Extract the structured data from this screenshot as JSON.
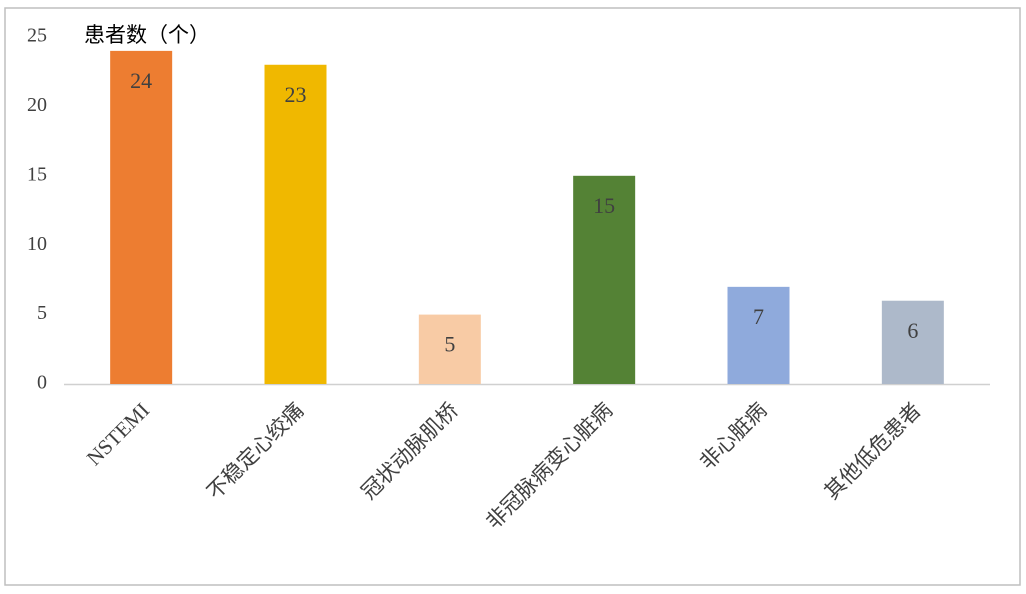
{
  "chart_data": {
    "type": "bar",
    "y_label": "患者数（个）",
    "categories": [
      "NSTEMI",
      "不稳定心绞痛",
      "冠状动脉肌桥",
      "非冠脉病变心脏病",
      "非心脏病",
      "其他低危患者"
    ],
    "values": [
      24,
      23,
      5,
      15,
      7,
      6
    ],
    "colors": [
      "#ed7d31",
      "#f0b800",
      "#f8cba5",
      "#548235",
      "#8faadc",
      "#adb9ca"
    ],
    "ylim": [
      0,
      25
    ],
    "yticks": [
      0,
      5,
      10,
      15,
      20,
      25
    ],
    "grid": false
  }
}
